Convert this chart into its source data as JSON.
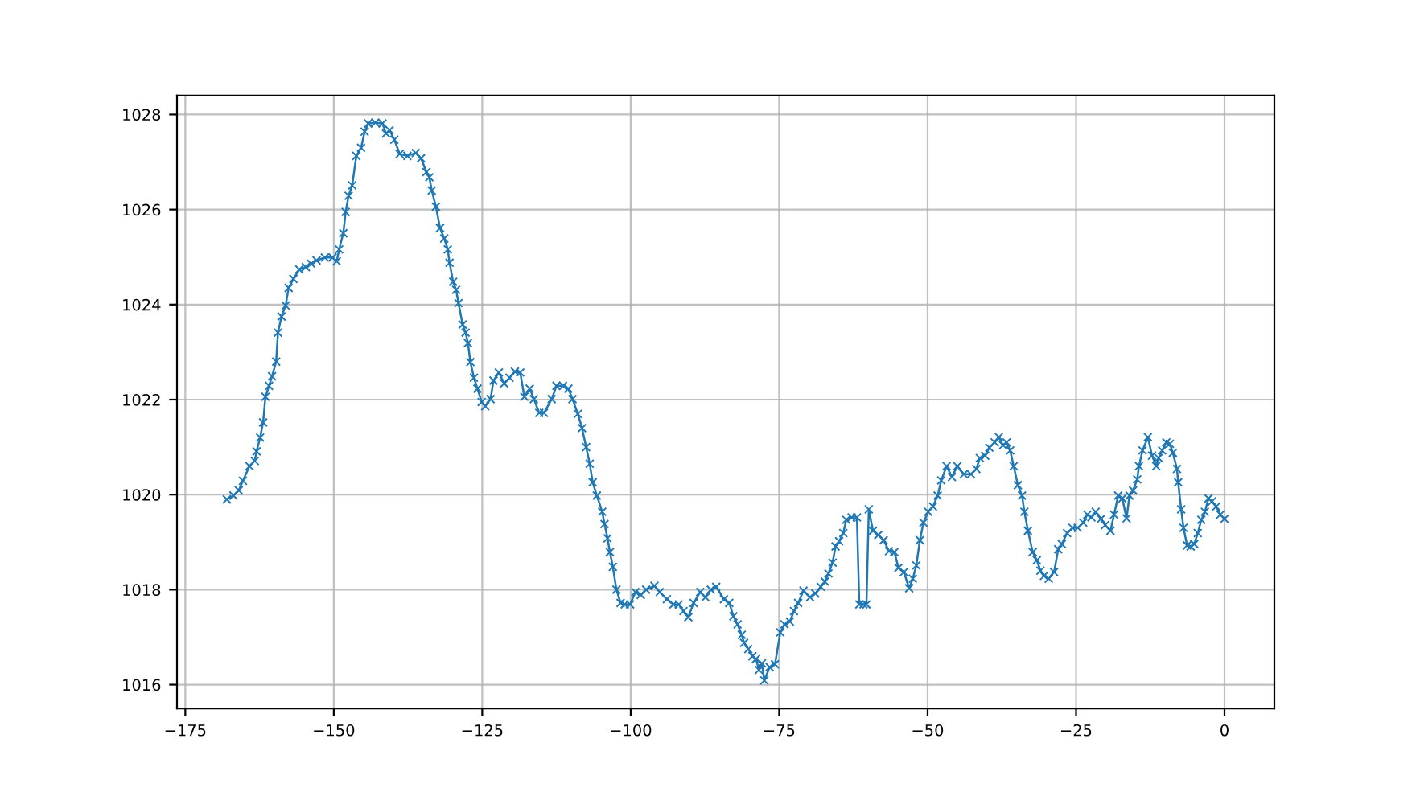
{
  "chart_data": {
    "type": "line",
    "x": [
      -168.0,
      -166.9,
      -166.0,
      -165.3,
      -164.2,
      -163.3,
      -163.0,
      -162.4,
      -161.9,
      -161.5,
      -160.9,
      -160.4,
      -159.7,
      -159.4,
      -158.8,
      -158.1,
      -157.6,
      -156.8,
      -155.8,
      -154.7,
      -153.8,
      -152.9,
      -151.5,
      -150.2,
      -149.5,
      -149.1,
      -148.4,
      -148.0,
      -147.5,
      -146.9,
      -146.2,
      -145.4,
      -144.8,
      -144.2,
      -143.0,
      -141.8,
      -141.2,
      -140.6,
      -139.8,
      -138.9,
      -137.6,
      -136.2,
      -135.3,
      -134.4,
      -133.9,
      -133.5,
      -132.8,
      -132.1,
      -131.4,
      -130.8,
      -130.5,
      -129.9,
      -129.4,
      -129.0,
      -128.3,
      -127.8,
      -127.4,
      -127.0,
      -126.4,
      -125.8,
      -125.1,
      -124.5,
      -123.6,
      -123.1,
      -122.2,
      -121.3,
      -120.4,
      -119.5,
      -118.6,
      -117.9,
      -117.0,
      -116.3,
      -115.4,
      -114.6,
      -113.3,
      -112.5,
      -111.4,
      -110.5,
      -109.8,
      -108.9,
      -108.2,
      -107.5,
      -106.9,
      -106.4,
      -105.7,
      -104.8,
      -104.4,
      -103.9,
      -103.5,
      -103.0,
      -102.4,
      -101.7,
      -101.0,
      -100.1,
      -99.2,
      -98.3,
      -97.4,
      -96.0,
      -95.1,
      -93.9,
      -92.8,
      -91.9,
      -91.1,
      -90.3,
      -89.4,
      -88.3,
      -87.4,
      -86.5,
      -85.6,
      -84.3,
      -83.4,
      -82.7,
      -82.0,
      -81.3,
      -80.9,
      -80.2,
      -79.5,
      -78.9,
      -78.4,
      -77.9,
      -77.5,
      -76.6,
      -75.7,
      -74.8,
      -74.1,
      -73.2,
      -72.5,
      -71.8,
      -70.9,
      -69.8,
      -68.9,
      -68.0,
      -67.3,
      -66.7,
      -66.0,
      -65.5,
      -64.9,
      -64.2,
      -63.7,
      -62.8,
      -61.9,
      -61.5,
      -60.8,
      -60.3,
      -59.9,
      -59.2,
      -58.3,
      -57.4,
      -56.5,
      -55.6,
      -54.9,
      -54.0,
      -53.1,
      -52.5,
      -51.9,
      -51.3,
      -50.7,
      -49.9,
      -49.1,
      -48.3,
      -47.7,
      -46.8,
      -45.9,
      -45.0,
      -43.9,
      -42.7,
      -41.8,
      -41.2,
      -40.3,
      -39.6,
      -38.7,
      -38.0,
      -37.3,
      -36.7,
      -36.1,
      -35.5,
      -34.8,
      -34.1,
      -33.7,
      -33.1,
      -32.3,
      -31.6,
      -31.0,
      -30.4,
      -29.6,
      -28.7,
      -28.0,
      -27.4,
      -26.5,
      -25.6,
      -24.7,
      -23.8,
      -23.1,
      -22.4,
      -21.7,
      -20.8,
      -20.1,
      -19.2,
      -18.6,
      -17.9,
      -17.2,
      -16.5,
      -16.0,
      -15.4,
      -14.7,
      -14.4,
      -13.8,
      -12.9,
      -12.2,
      -11.5,
      -11.1,
      -10.5,
      -9.8,
      -9.2,
      -8.7,
      -8.0,
      -7.8,
      -7.3,
      -6.9,
      -6.3,
      -5.7,
      -5.1,
      -4.5,
      -3.9,
      -3.3,
      -2.7,
      -2.1,
      -1.4,
      -0.7,
      0.0
    ],
    "series": [
      {
        "color": "#1f77b4",
        "values": [
          1019.9,
          1019.98,
          1020.09,
          1020.29,
          1020.6,
          1020.71,
          1020.91,
          1021.2,
          1021.52,
          1022.06,
          1022.29,
          1022.49,
          1022.8,
          1023.41,
          1023.75,
          1023.98,
          1024.35,
          1024.54,
          1024.74,
          1024.79,
          1024.86,
          1024.93,
          1024.99,
          1024.99,
          1024.91,
          1025.16,
          1025.5,
          1025.95,
          1026.29,
          1026.51,
          1027.13,
          1027.3,
          1027.64,
          1027.81,
          1027.83,
          1027.81,
          1027.6,
          1027.67,
          1027.47,
          1027.17,
          1027.13,
          1027.19,
          1027.08,
          1026.79,
          1026.68,
          1026.4,
          1026.06,
          1025.61,
          1025.39,
          1025.16,
          1024.88,
          1024.48,
          1024.31,
          1024.03,
          1023.58,
          1023.41,
          1023.19,
          1022.79,
          1022.46,
          1022.23,
          1021.95,
          1021.86,
          1022.01,
          1022.4,
          1022.57,
          1022.34,
          1022.46,
          1022.59,
          1022.57,
          1022.06,
          1022.23,
          1022.01,
          1021.72,
          1021.72,
          1022.01,
          1022.29,
          1022.29,
          1022.23,
          1022.01,
          1021.7,
          1021.4,
          1021.0,
          1020.65,
          1020.26,
          1019.98,
          1019.64,
          1019.38,
          1019.08,
          1018.79,
          1018.48,
          1018.0,
          1017.72,
          1017.69,
          1017.69,
          1017.95,
          1017.89,
          1018.0,
          1018.08,
          1017.95,
          1017.8,
          1017.69,
          1017.69,
          1017.55,
          1017.42,
          1017.72,
          1017.95,
          1017.84,
          1018.0,
          1018.06,
          1017.8,
          1017.72,
          1017.44,
          1017.27,
          1017.05,
          1016.88,
          1016.75,
          1016.6,
          1016.54,
          1016.31,
          1016.45,
          1016.09,
          1016.37,
          1016.43,
          1017.1,
          1017.27,
          1017.33,
          1017.55,
          1017.72,
          1017.98,
          1017.84,
          1017.92,
          1018.06,
          1018.17,
          1018.34,
          1018.57,
          1018.91,
          1019.02,
          1019.19,
          1019.47,
          1019.52,
          1019.52,
          1017.69,
          1017.69,
          1017.69,
          1019.69,
          1019.24,
          1019.15,
          1019.04,
          1018.81,
          1018.79,
          1018.46,
          1018.37,
          1018.03,
          1018.23,
          1018.51,
          1019.04,
          1019.41,
          1019.64,
          1019.75,
          1019.98,
          1020.3,
          1020.6,
          1020.37,
          1020.6,
          1020.43,
          1020.43,
          1020.54,
          1020.77,
          1020.82,
          1020.99,
          1021.1,
          1021.21,
          1021.04,
          1021.1,
          1020.93,
          1020.6,
          1020.2,
          1019.98,
          1019.64,
          1019.24,
          1018.79,
          1018.62,
          1018.4,
          1018.29,
          1018.23,
          1018.37,
          1018.85,
          1018.96,
          1019.19,
          1019.3,
          1019.3,
          1019.41,
          1019.58,
          1019.52,
          1019.64,
          1019.49,
          1019.36,
          1019.24,
          1019.58,
          1019.98,
          1019.92,
          1019.5,
          1019.98,
          1020.09,
          1020.32,
          1020.6,
          1020.93,
          1021.21,
          1020.82,
          1020.6,
          1020.77,
          1020.93,
          1021.1,
          1021.07,
          1020.88,
          1020.54,
          1020.26,
          1019.69,
          1019.3,
          1018.93,
          1018.91,
          1018.96,
          1019.19,
          1019.47,
          1019.64,
          1019.92,
          1019.86,
          1019.75,
          1019.58,
          1019.49
        ]
      }
    ],
    "xlim": [
      -176.4,
      8.4
    ],
    "ylim": [
      1015.5,
      1028.4
    ],
    "xticks": [
      {
        "value": -175,
        "label": "−175"
      },
      {
        "value": -150,
        "label": "−150"
      },
      {
        "value": -125,
        "label": "−125"
      },
      {
        "value": -100,
        "label": "−100"
      },
      {
        "value": -75,
        "label": "−75"
      },
      {
        "value": -50,
        "label": "−50"
      },
      {
        "value": -25,
        "label": "−25"
      },
      0
    ],
    "yticks": [
      1016,
      1018,
      1020,
      1022,
      1024,
      1026,
      1028
    ],
    "grid": true,
    "marker": "cross",
    "line_style": "solid"
  }
}
